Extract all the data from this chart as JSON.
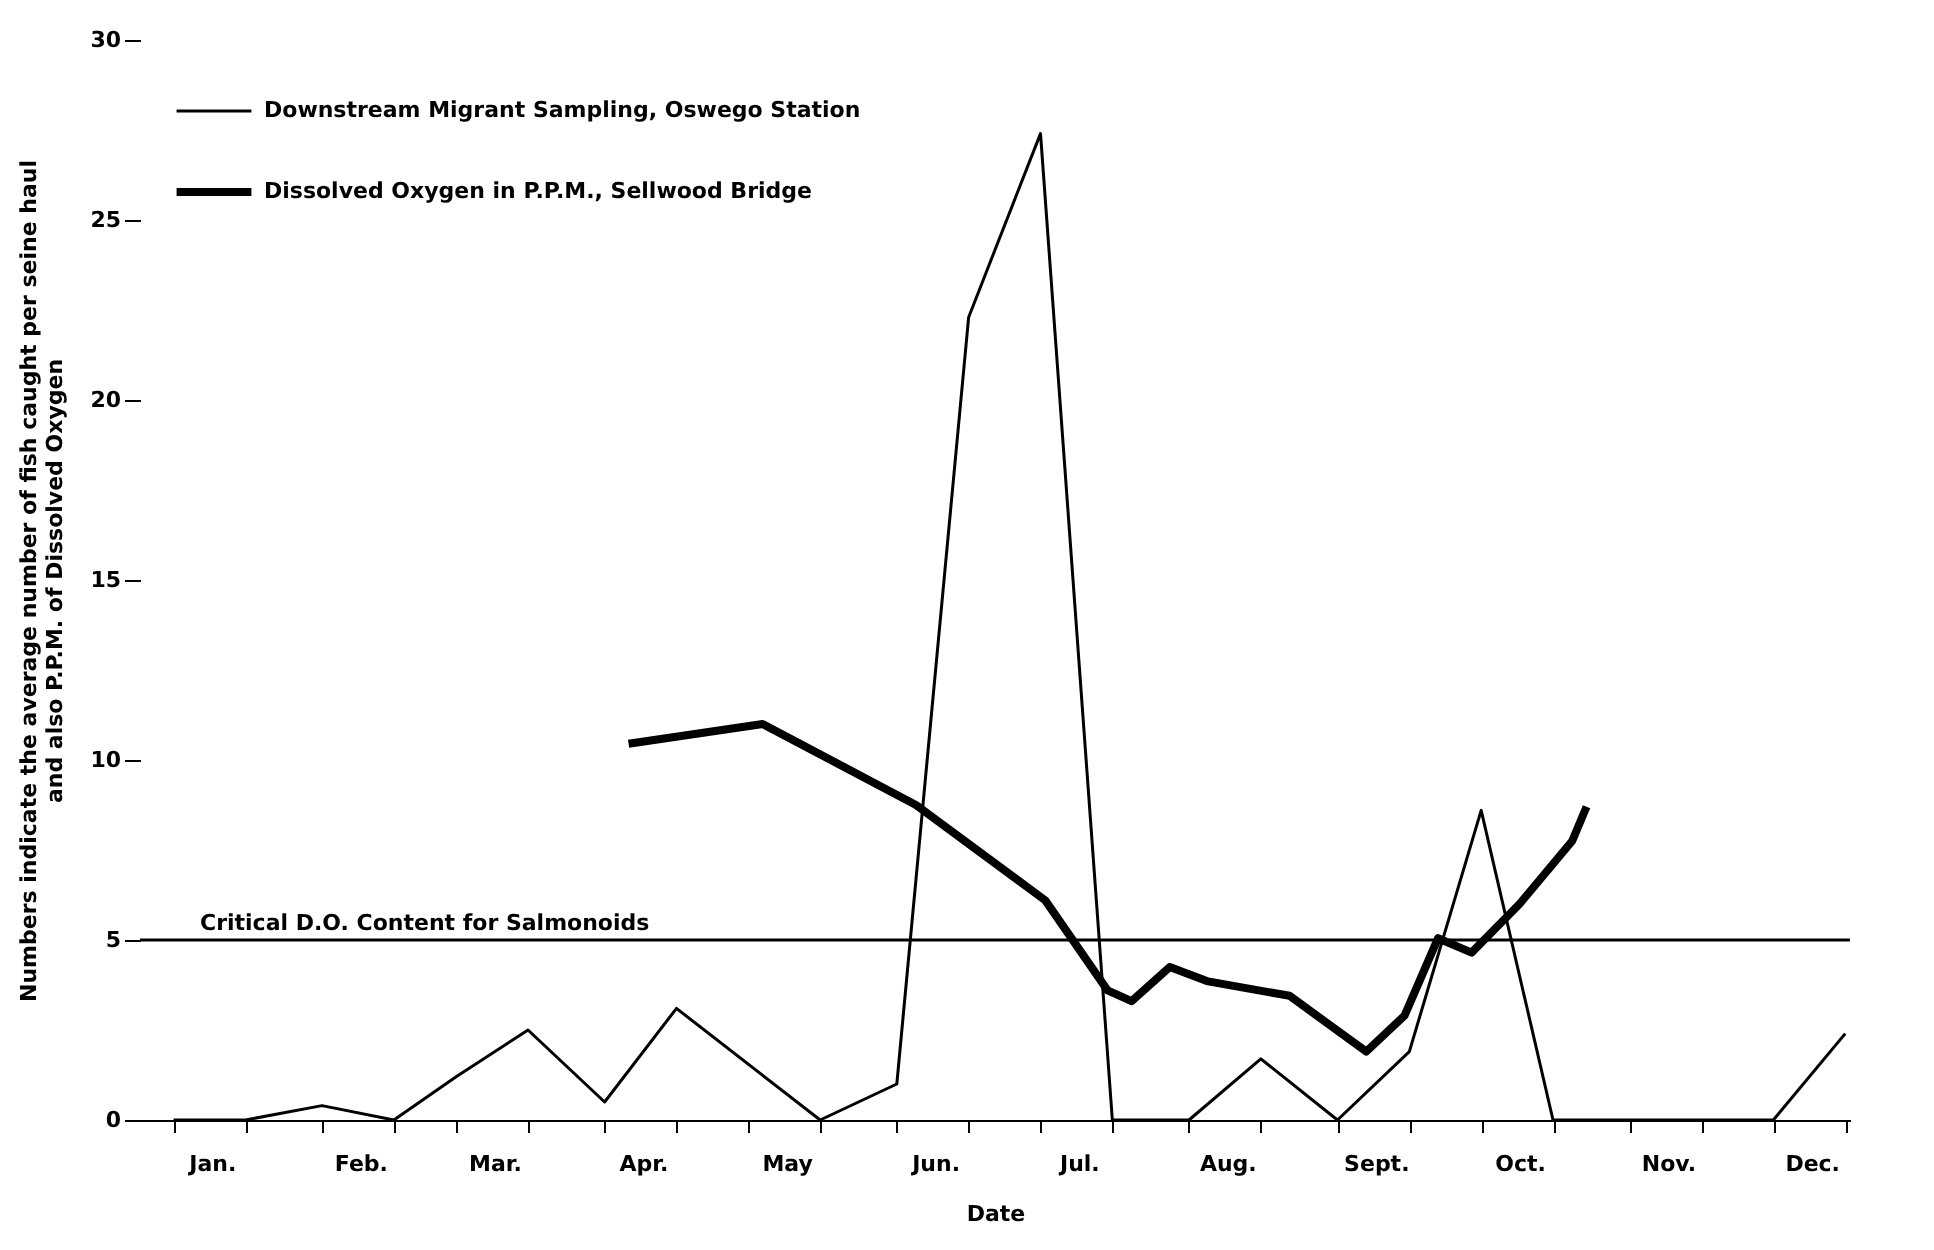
{
  "chart_data": {
    "type": "line",
    "xlabel": "Date",
    "ylabel": "Numbers indicate the average number of fish caught per seine haul\nand also P.P.M. of Dissolved Oxygen",
    "xlim": [
      "--01-01",
      "--12-24"
    ],
    "ylim": [
      0,
      30
    ],
    "yticks": [
      0,
      5,
      10,
      15,
      20,
      25,
      30
    ],
    "xticks": [
      {
        "value": "--01-08",
        "label": null
      },
      {
        "value": "--01-16",
        "label": "Jan."
      },
      {
        "value": "--01-23",
        "label": null
      },
      {
        "value": "--02-08",
        "label": null
      },
      {
        "value": "--02-16",
        "label": "Feb."
      },
      {
        "value": "--02-23",
        "label": null
      },
      {
        "value": "--03-08",
        "label": null
      },
      {
        "value": "--03-16",
        "label": "Mar."
      },
      {
        "value": "--03-23",
        "label": null
      },
      {
        "value": "--04-08",
        "label": null
      },
      {
        "value": "--04-16",
        "label": "Apr."
      },
      {
        "value": "--04-23",
        "label": null
      },
      {
        "value": "--05-08",
        "label": null
      },
      {
        "value": "--05-16",
        "label": "May"
      },
      {
        "value": "--05-23",
        "label": null
      },
      {
        "value": "--06-08",
        "label": null
      },
      {
        "value": "--06-16",
        "label": "Jun."
      },
      {
        "value": "--06-23",
        "label": null
      },
      {
        "value": "--07-08",
        "label": null
      },
      {
        "value": "--07-16",
        "label": "Jul."
      },
      {
        "value": "--07-23",
        "label": null
      },
      {
        "value": "--08-08",
        "label": null
      },
      {
        "value": "--08-16",
        "label": "Aug."
      },
      {
        "value": "--08-23",
        "label": null
      },
      {
        "value": "--09-08",
        "label": null
      },
      {
        "value": "--09-16",
        "label": "Sept."
      },
      {
        "value": "--09-23",
        "label": null
      },
      {
        "value": "--10-08",
        "label": null
      },
      {
        "value": "--10-16",
        "label": "Oct."
      },
      {
        "value": "--10-23",
        "label": null
      },
      {
        "value": "--11-08",
        "label": null
      },
      {
        "value": "--11-16",
        "label": "Nov."
      },
      {
        "value": "--11-23",
        "label": null
      },
      {
        "value": "--12-08",
        "label": null
      },
      {
        "value": "--12-16",
        "label": "Dec."
      },
      {
        "value": "--12-23",
        "label": null
      }
    ],
    "grid": false,
    "legend": "top left",
    "ref_lines": [
      {
        "axis": "y",
        "value": 5,
        "label": "Critical D.O. Content for Salmonoids"
      }
    ],
    "series": [
      {
        "name": "Downstream Migrant Sampling, Oswego Station",
        "color": "#000000",
        "x": [
          "--01-08",
          "--01-23",
          "--02-08",
          "--02-23",
          "--03-08",
          "--03-23",
          "--04-08",
          "--04-23",
          "--05-23",
          "--06-08",
          "--06-23",
          "--07-08",
          "--07-23",
          "--08-08",
          "--08-23",
          "--09-08",
          "--09-23",
          "--10-08",
          "--10-23",
          "--12-08",
          "--12-23"
        ],
        "values": [
          0,
          0,
          0.4,
          0,
          1.2,
          2.5,
          0.5,
          3.1,
          0,
          1.0,
          22.3,
          27.4,
          0,
          0,
          1.7,
          0,
          1.9,
          8.6,
          0,
          0,
          2.4
        ]
      },
      {
        "name": "Dissolved Oxygen in P.P.M., Sellwood Bridge",
        "color": "#000000",
        "x": [
          "--04-13",
          "--05-11",
          "--06-12",
          "--07-09",
          "--07-22",
          "--07-27",
          "--08-04",
          "--08-12",
          "--08-29",
          "--09-14",
          "--09-22",
          "--09-29",
          "--10-06",
          "--10-16",
          "--10-27",
          "--10-30"
        ],
        "values": [
          10.45,
          11.0,
          8.75,
          6.1,
          3.6,
          3.3,
          4.25,
          3.85,
          3.45,
          1.9,
          2.9,
          5.05,
          4.65,
          6.0,
          7.75,
          8.7
        ]
      }
    ]
  }
}
